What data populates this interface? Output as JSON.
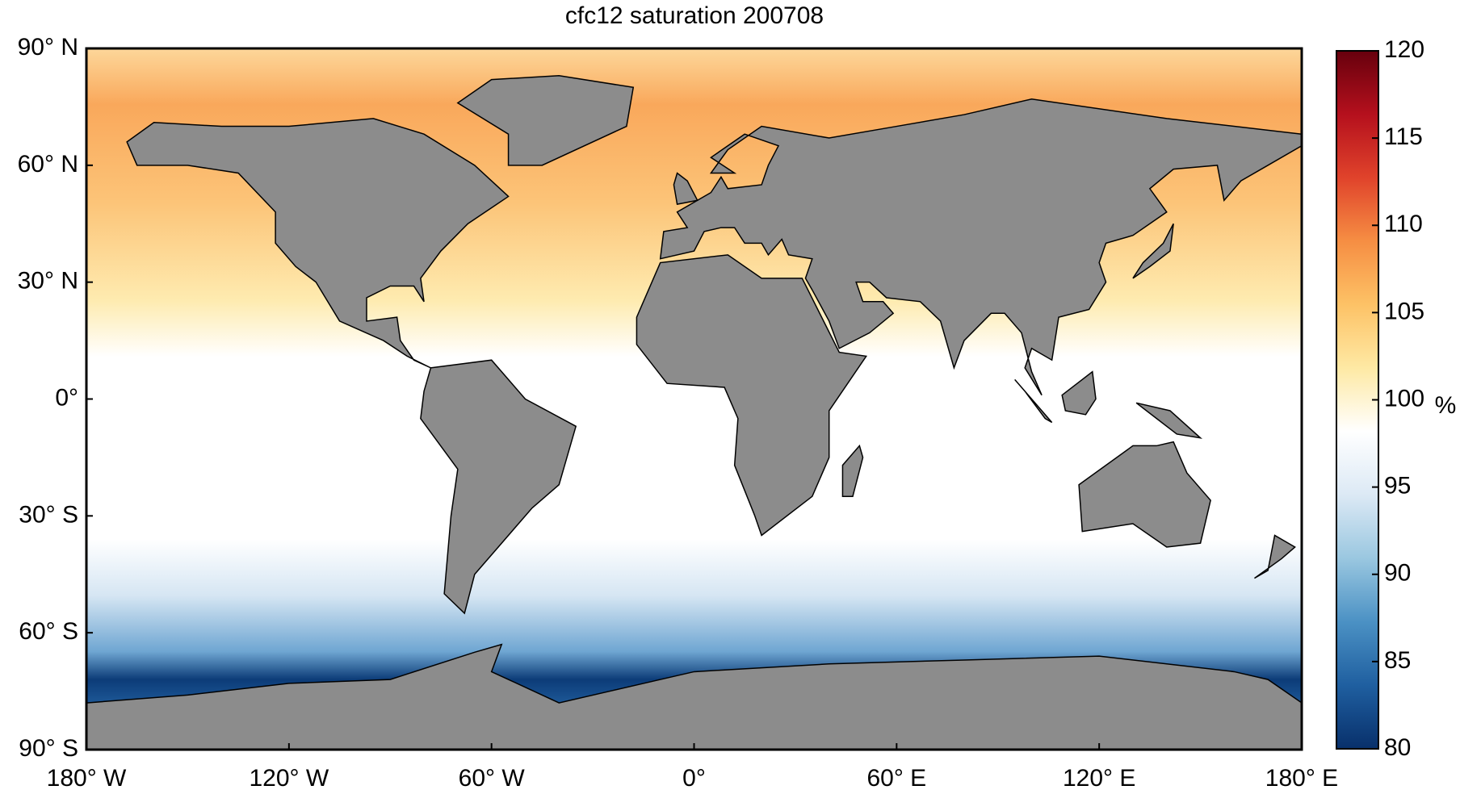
{
  "chart_data": {
    "type": "map",
    "title": "cfc12 saturation 200708",
    "xlim": [
      -180,
      180
    ],
    "xticks": [
      {
        "value": -180,
        "label": "180° W"
      },
      {
        "value": -120,
        "label": "120° W"
      },
      {
        "value": -60,
        "label": "60° W"
      },
      {
        "value": 0,
        "label": "0°"
      },
      {
        "value": 60,
        "label": "60° E"
      },
      {
        "value": 120,
        "label": "120° E"
      },
      {
        "value": 180,
        "label": "180° E"
      }
    ],
    "ylim": [
      -90,
      90
    ],
    "yticks": [
      {
        "value": 90,
        "label": "90° N"
      },
      {
        "value": 60,
        "label": "60° N"
      },
      {
        "value": 30,
        "label": "30° N"
      },
      {
        "value": 0,
        "label": "0°"
      },
      {
        "value": -30,
        "label": "30° S"
      },
      {
        "value": -60,
        "label": "60° S"
      },
      {
        "value": -90,
        "label": "90° S"
      }
    ],
    "colorbar": {
      "clim": [
        80,
        120
      ],
      "ticks": [
        80,
        85,
        90,
        95,
        100,
        105,
        110,
        115,
        120
      ],
      "label": "%",
      "colormap": [
        "#08306b",
        "#1f5fa0",
        "#4b91c4",
        "#9ac7e0",
        "#dce9f5",
        "#ffffff",
        "#fee9a4",
        "#fdc266",
        "#f68e43",
        "#e0432b",
        "#b5101d",
        "#67000d"
      ]
    }
  }
}
